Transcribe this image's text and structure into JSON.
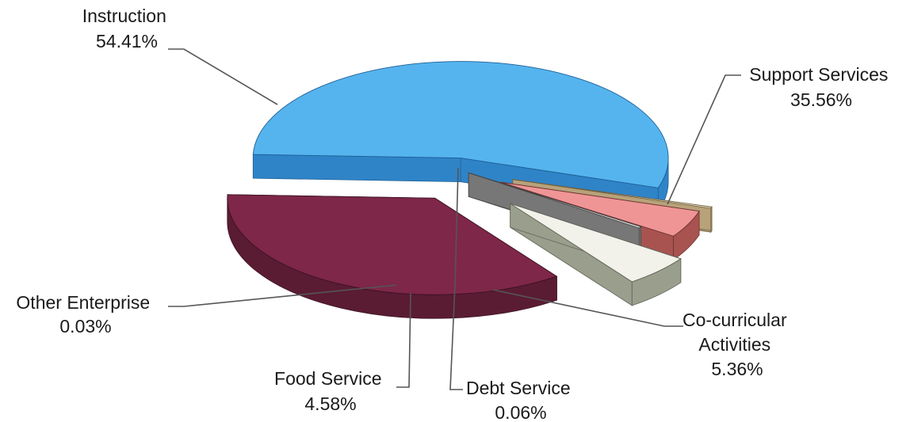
{
  "chart_data": {
    "type": "pie",
    "title": "",
    "slices": [
      {
        "label": "Instruction",
        "value": 54.41,
        "value_label": "54.41%",
        "color": "#55b4ee",
        "side_color": "#2f84c8",
        "edge_color": "#1e5f96"
      },
      {
        "label": "Support Services",
        "value": 35.56,
        "value_label": "35.56%",
        "color": "#7e2748",
        "side_color": "#5a1c33",
        "edge_color": "#3c1222"
      },
      {
        "label": "Co-curricular Activities",
        "label_lines": [
          "Co-curricular",
          "Activities"
        ],
        "value": 5.36,
        "value_label": "5.36%",
        "color": "#f2f2ea",
        "side_color": "#9a9e8c",
        "edge_color": "#5f6357"
      },
      {
        "label": "Debt Service",
        "value": 0.06,
        "value_label": "0.06%",
        "color": "#e8e8e8",
        "side_color": "#777777",
        "edge_color": "#444444"
      },
      {
        "label": "Food Service",
        "value": 4.58,
        "value_label": "4.58%",
        "color": "#ef9596",
        "side_color": "#a85350",
        "edge_color": "#6b3230"
      },
      {
        "label": "Other Enterprise",
        "value": 0.03,
        "value_label": "0.03%",
        "color": "#f4e8c8",
        "side_color": "#b8a27a",
        "edge_color": "#6f6040"
      }
    ],
    "legend": "none"
  }
}
